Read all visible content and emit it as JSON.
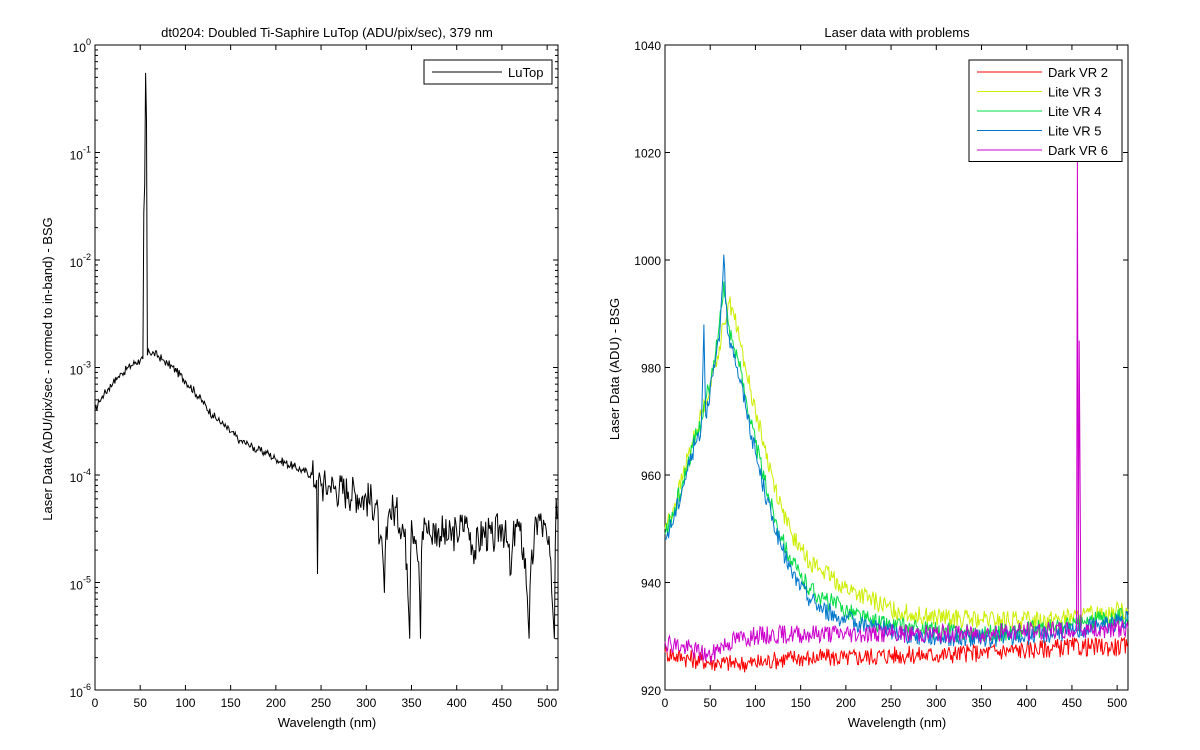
{
  "chart_data": [
    {
      "type": "line",
      "title": "dt0204: Doubled Ti-Saphire LuTop (ADU/pix/sec), 379 nm",
      "xlabel": "Wavelength (nm)",
      "ylabel": "Laser Data (ADU/pix/sec - normed to in-band) - BSG",
      "xlim": [
        0,
        512
      ],
      "ylim": [
        1e-06,
        1
      ],
      "yscale": "log",
      "xticks": [
        0,
        50,
        100,
        150,
        200,
        250,
        300,
        350,
        400,
        450,
        500
      ],
      "yticks": [
        {
          "value": 1,
          "base": "10",
          "exp": "0"
        },
        {
          "value": 0.1,
          "base": "10",
          "exp": "-1"
        },
        {
          "value": 0.01,
          "base": "10",
          "exp": "-2"
        },
        {
          "value": 0.001,
          "base": "10",
          "exp": "-3"
        },
        {
          "value": 0.0001,
          "base": "10",
          "exp": "-4"
        },
        {
          "value": 1e-05,
          "base": "10",
          "exp": "-5"
        },
        {
          "value": 1e-06,
          "base": "10",
          "exp": "-6"
        }
      ],
      "grid": false,
      "legend_position": "top-right",
      "series": [
        {
          "name": "LuTop",
          "color": "#000000",
          "x": [
            0,
            5,
            10,
            15,
            20,
            25,
            30,
            35,
            40,
            45,
            50,
            53,
            55,
            56,
            57,
            58,
            60,
            65,
            70,
            75,
            80,
            90,
            100,
            110,
            120,
            130,
            140,
            150,
            160,
            170,
            180,
            190,
            200,
            210,
            220,
            230,
            240,
            245,
            246,
            247,
            250,
            260,
            270,
            280,
            290,
            300,
            310,
            315,
            320,
            325,
            330,
            340,
            345,
            348,
            350,
            355,
            360,
            362,
            365,
            370,
            380,
            390,
            400,
            410,
            420,
            430,
            440,
            450,
            460,
            465,
            470,
            480,
            490,
            500,
            505,
            508,
            510,
            512
          ],
          "y": [
            0.0004,
            0.00048,
            0.00056,
            0.00064,
            0.00072,
            0.0008,
            0.00088,
            0.00096,
            0.00104,
            0.00112,
            0.00116,
            0.0012,
            0.05,
            0.55,
            0.2,
            0.0013,
            0.0014,
            0.00136,
            0.00128,
            0.00118,
            0.0011,
            0.00092,
            0.00075,
            0.0006,
            0.00046,
            0.00036,
            0.0003,
            0.00025,
            0.00021,
            0.00019,
            0.00017,
            0.00016,
            0.00014,
            0.00013,
            0.00012,
            0.00011,
            0.0001,
            9e-05,
            1.2e-05,
            9e-05,
            8e-05,
            7.8e-05,
            7.4e-05,
            7e-05,
            6.6e-05,
            6e-05,
            5.4e-05,
            2.5e-05,
            8e-06,
            4.5e-05,
            4.8e-05,
            3.5e-05,
            1.5e-05,
            3e-06,
            3.8e-05,
            2.5e-05,
            3e-06,
            3e-05,
            3.5e-05,
            2.8e-05,
            3.2e-05,
            2.5e-05,
            3e-05,
            3.5e-05,
            2e-05,
            3e-05,
            2.5e-05,
            3.5e-05,
            1.2e-05,
            3.5e-05,
            3e-05,
            3e-06,
            4e-05,
            2.5e-05,
            8e-06,
            3e-06,
            6e-05,
            4e-05
          ]
        }
      ]
    },
    {
      "type": "line",
      "title": "Laser data with problems",
      "xlabel": "Wavelength (nm)",
      "ylabel": "Laser Data (ADU) - BSG",
      "xlim": [
        0,
        512
      ],
      "ylim": [
        920,
        1040
      ],
      "yscale": "linear",
      "xticks": [
        0,
        50,
        100,
        150,
        200,
        250,
        300,
        350,
        400,
        450,
        500
      ],
      "yticks": [
        920,
        940,
        960,
        980,
        1000,
        1020,
        1040
      ],
      "grid": false,
      "legend_position": "top-right",
      "series": [
        {
          "name": "Dark VR 2",
          "color": "#ff0000",
          "x": [
            0,
            20,
            40,
            60,
            80,
            100,
            120,
            140,
            160,
            180,
            200,
            250,
            300,
            350,
            400,
            450,
            512
          ],
          "y": [
            927,
            926,
            925.5,
            925,
            925,
            925,
            925.5,
            926,
            926,
            926,
            926,
            926.5,
            926.5,
            927,
            927.5,
            928,
            928
          ]
        },
        {
          "name": "Lite VR 3",
          "color": "#ccee00",
          "x": [
            0,
            10,
            20,
            30,
            40,
            45,
            50,
            55,
            60,
            65,
            70,
            75,
            80,
            90,
            100,
            110,
            120,
            130,
            140,
            150,
            160,
            175,
            200,
            225,
            250,
            275,
            300,
            350,
            400,
            450,
            480,
            512
          ],
          "y": [
            950,
            954,
            960,
            966,
            971,
            974,
            977,
            980,
            984,
            988,
            992,
            991,
            987,
            979,
            972,
            965,
            959,
            953,
            949,
            946,
            944,
            942,
            939,
            937,
            935,
            934,
            933.5,
            933,
            933,
            933.5,
            934,
            935
          ]
        },
        {
          "name": "Lite VR 4",
          "color": "#00dd44",
          "x": [
            0,
            10,
            20,
            30,
            40,
            45,
            50,
            55,
            60,
            65,
            70,
            75,
            80,
            90,
            100,
            110,
            120,
            130,
            140,
            150,
            160,
            175,
            200,
            225,
            250,
            275,
            300,
            350,
            400,
            450,
            480,
            512
          ],
          "y": [
            949,
            953,
            959,
            965,
            970,
            974,
            977,
            981,
            988,
            996,
            988,
            985,
            982,
            974,
            966,
            959,
            953,
            948,
            944,
            941,
            939,
            937,
            935,
            933,
            932,
            931.5,
            931,
            930.5,
            931,
            932,
            933,
            934
          ]
        },
        {
          "name": "Lite VR 5",
          "color": "#0077cc",
          "x": [
            0,
            10,
            20,
            30,
            40,
            43,
            45,
            50,
            55,
            60,
            65,
            67,
            70,
            75,
            80,
            90,
            100,
            110,
            120,
            130,
            140,
            150,
            160,
            175,
            200,
            225,
            250,
            275,
            300,
            350,
            400,
            450,
            480,
            512
          ],
          "y": [
            948,
            952,
            958,
            964,
            969,
            988,
            971,
            976,
            980,
            985,
            1001,
            992,
            986,
            984,
            980,
            972,
            964,
            957,
            951,
            946,
            942,
            939,
            937,
            935,
            933,
            932,
            931,
            930,
            930,
            929.5,
            930,
            931,
            932,
            933
          ]
        },
        {
          "name": "Dark VR 6",
          "color": "#cc00cc",
          "x": [
            0,
            20,
            40,
            50,
            60,
            80,
            100,
            150,
            200,
            250,
            300,
            350,
            400,
            450,
            455,
            456,
            457,
            458,
            460,
            470,
            490,
            512
          ],
          "y": [
            929,
            928,
            927,
            926,
            928,
            929.5,
            930,
            930.5,
            930.5,
            930.5,
            930.5,
            930.5,
            931,
            931,
            931,
            1020,
            931,
            985,
            931,
            931,
            931.5,
            931.5
          ]
        }
      ]
    }
  ]
}
